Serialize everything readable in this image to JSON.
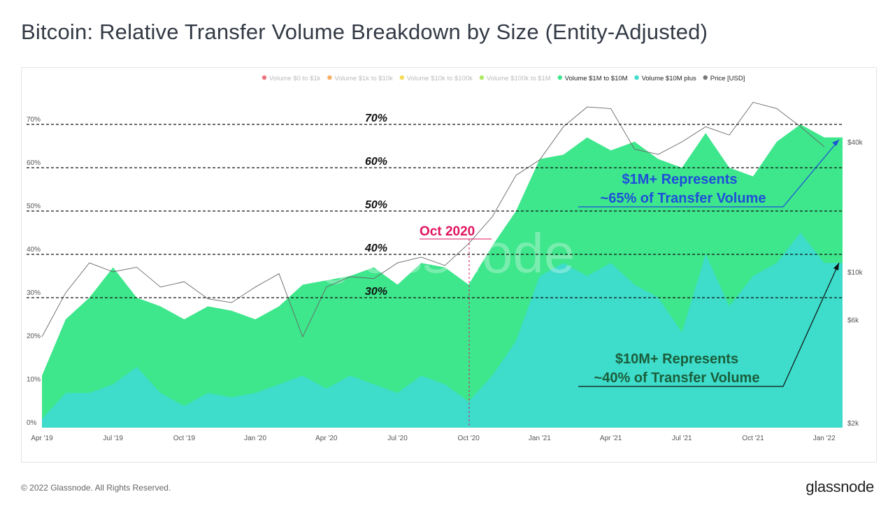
{
  "title": "Bitcoin: Relative Transfer Volume Breakdown by Size (Entity-Adjusted)",
  "footer": "© 2022 Glassnode. All Rights Reserved.",
  "logo": "glassnode",
  "watermark": "glassnode",
  "chart_data": {
    "type": "area",
    "legend_position": "top-right",
    "legend": [
      {
        "name": "Volume $0 to $1k",
        "color": "#e5535f",
        "active": false
      },
      {
        "name": "Volume $1k to $10k",
        "color": "#f39a3c",
        "active": false
      },
      {
        "name": "Volume $10k to $100k",
        "color": "#f2d22e",
        "active": false
      },
      {
        "name": "Volume $100k to $1M",
        "color": "#9be33f",
        "active": false
      },
      {
        "name": "Volume $1M to $10M",
        "color": "#3ee68c",
        "active": true
      },
      {
        "name": "Volume $10M plus",
        "color": "#3ddccb",
        "active": true
      },
      {
        "name": "Price [USD]",
        "color": "#777777",
        "active": true
      }
    ],
    "x": [
      "2019-04",
      "2019-05",
      "2019-06",
      "2019-07",
      "2019-08",
      "2019-09",
      "2019-10",
      "2019-11",
      "2019-12",
      "2020-01",
      "2020-02",
      "2020-03",
      "2020-04",
      "2020-05",
      "2020-06",
      "2020-07",
      "2020-08",
      "2020-09",
      "2020-10",
      "2020-11",
      "2020-12",
      "2021-01",
      "2021-02",
      "2021-03",
      "2021-04",
      "2021-05",
      "2021-06",
      "2021-07",
      "2021-08",
      "2021-09",
      "2021-10",
      "2021-11",
      "2021-12",
      "2022-01"
    ],
    "x_ticks": [
      "Apr '19",
      "Jul '19",
      "Oct '19",
      "Jan '20",
      "Apr '20",
      "Jul '20",
      "Oct '20",
      "Jan '21",
      "Apr '21",
      "Jul '21",
      "Oct '21",
      "Jan '22"
    ],
    "series": [
      {
        "name": "Volume $10M plus",
        "color": "#3ddccb",
        "unit": "%",
        "values": [
          2,
          8,
          8,
          10,
          14,
          8,
          5,
          8,
          7,
          8,
          10,
          12,
          9,
          12,
          10,
          8,
          12,
          10,
          6,
          12,
          20,
          35,
          38,
          35,
          38,
          33,
          30,
          22,
          40,
          28,
          35,
          38,
          45,
          38
        ]
      },
      {
        "name": "Volume $1M to $10M",
        "color": "#3ee68c",
        "unit": "%",
        "values": [
          10,
          17,
          22,
          27,
          16,
          20,
          20,
          20,
          20,
          17,
          18,
          21,
          25,
          23,
          27,
          25,
          26,
          27,
          27,
          30,
          30,
          27,
          25,
          32,
          26,
          33,
          32,
          38,
          28,
          32,
          23,
          28,
          25,
          29
        ]
      },
      {
        "name": "Price [USD]",
        "color": "#777777",
        "unit": "USD",
        "values": [
          5000,
          8000,
          11000,
          10000,
          10500,
          8500,
          9000,
          7500,
          7200,
          8500,
          9800,
          5000,
          8500,
          9500,
          9300,
          11000,
          11700,
          10700,
          13500,
          18000,
          28000,
          33000,
          47000,
          58000,
          57000,
          37000,
          35000,
          40000,
          47000,
          43000,
          61000,
          57000,
          47000,
          38000
        ]
      }
    ],
    "y_left": {
      "ticks": [
        "0%",
        "10%",
        "20%",
        "30%",
        "40%",
        "50%",
        "60%",
        "70%"
      ],
      "range": [
        0,
        70
      ]
    },
    "y_right": {
      "scale": "log",
      "ticks": [
        "$2k",
        "$6k",
        "$10k",
        "$40k"
      ],
      "tick_values": [
        2000,
        6000,
        10000,
        40000
      ]
    },
    "reference_lines": [
      {
        "value": 30,
        "label": "30%"
      },
      {
        "value": 40,
        "label": "40%"
      },
      {
        "value": 50,
        "label": "50%"
      },
      {
        "value": 60,
        "label": "60%"
      },
      {
        "value": 70,
        "label": "70%"
      }
    ],
    "annotations": {
      "oct_label": "Oct 2020",
      "oct_color": "#e0135f",
      "m1_line1": "$1M+ Represents",
      "m1_line2": "~65% of Transfer Volume",
      "m1_color": "#1f4fd8",
      "m10_line1": "$10M+ Represents",
      "m10_line2": "~40% of Transfer Volume",
      "m10_color": "#1b5e3b"
    }
  }
}
